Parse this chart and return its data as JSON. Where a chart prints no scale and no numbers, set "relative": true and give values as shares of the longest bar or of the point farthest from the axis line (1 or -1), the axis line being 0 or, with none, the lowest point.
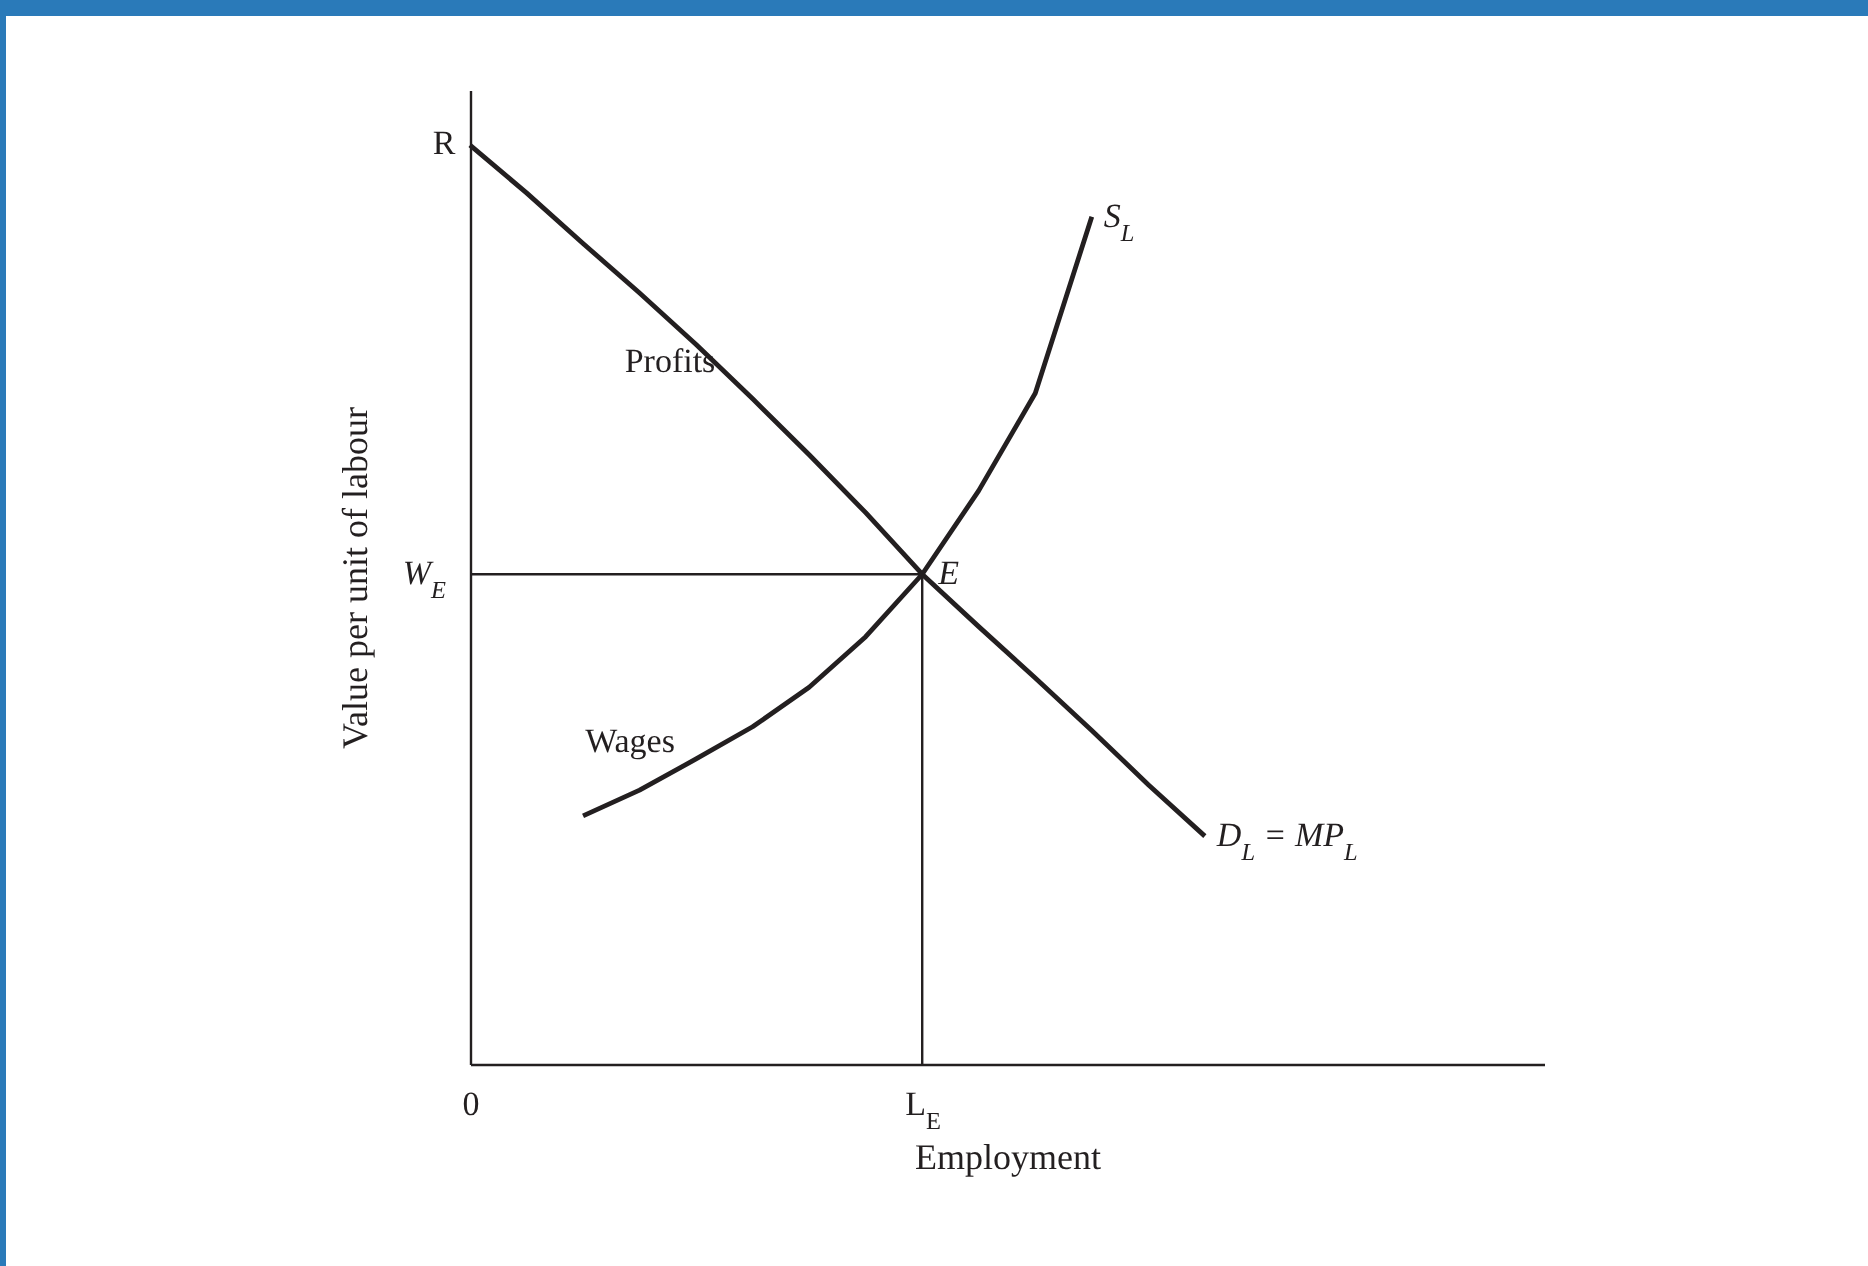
{
  "chart_data": {
    "type": "line",
    "relative": true,
    "xlabel": "Employment",
    "ylabel": "Value per unit of labour",
    "categories": [
      "0",
      null,
      null,
      null,
      null,
      null,
      null,
      null,
      "L$_{E}$",
      null,
      null,
      null,
      null,
      null,
      null,
      null,
      null,
      null,
      null,
      null
    ],
    "series": [
      {
        "name": "D$_{L}$ = MP$_{L}$",
        "color": "#231f20",
        "values": [
          1.0,
          0.948,
          0.893,
          0.839,
          0.783,
          0.724,
          0.663,
          0.6,
          0.533,
          0.476,
          0.42,
          0.363,
          0.304,
          0.248,
          null,
          null,
          null,
          null,
          null,
          null
        ]
      },
      {
        "name": "S$_{L}$",
        "color": "#231f20",
        "values": [
          null,
          null,
          0.27,
          0.298,
          0.332,
          0.367,
          0.41,
          0.465,
          0.533,
          0.624,
          0.73,
          0.922,
          null,
          null,
          null,
          null,
          null,
          null,
          null,
          null
        ]
      }
    ],
    "ref_lines": [
      {
        "axis": "y",
        "value": 0.533,
        "label": "W$_{E}$"
      },
      {
        "axis": "x",
        "value": "L$_{E}$"
      }
    ],
    "annotations": [
      "R",
      {
        "text": "E",
        "x": "L$_{E}$",
        "y": 0.533
      },
      "Profits",
      "Wages"
    ]
  }
}
